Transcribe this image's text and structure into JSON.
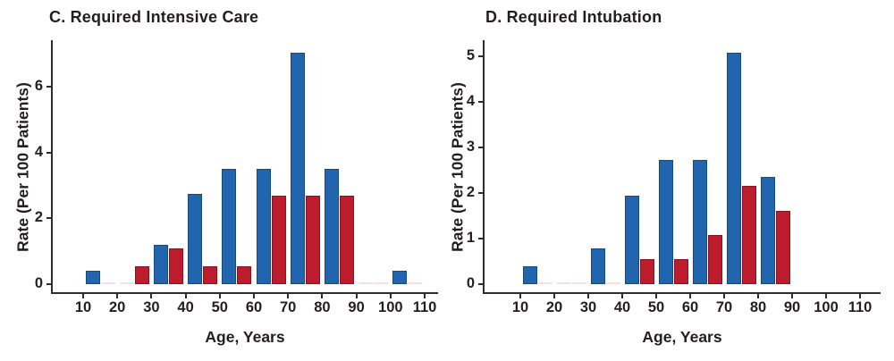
{
  "colors": {
    "blue": "#2065ad",
    "blue_border": "#17497e",
    "blue_near_zero": "#dde9f5",
    "red": "#bd1c2c",
    "red_border": "#8c1220",
    "red_near_zero": "#f8dee1",
    "axis": "#2d2d2d",
    "text": "#231f20"
  },
  "chart_data": [
    {
      "type": "bar",
      "title": "C. Required Intensive Care",
      "xlabel": "Age, Years",
      "ylabel": "Rate (Per 100 Patients)",
      "categories": [
        "10-19",
        "20-29",
        "30-39",
        "40-49",
        "50-59",
        "60-69",
        "70-79",
        "80-89",
        "90-99",
        "100-109"
      ],
      "x_ticks": [
        10,
        20,
        30,
        40,
        50,
        60,
        70,
        80,
        90,
        100,
        110
      ],
      "y_ticks": [
        0,
        2,
        4,
        6
      ],
      "ylim": [
        0,
        7.4
      ],
      "xlim": [
        1,
        114
      ],
      "grid": "off",
      "legend": "none",
      "series": [
        {
          "name": "blue",
          "color": "#2065ad",
          "values": [
            0.4,
            0.02,
            1.2,
            2.75,
            3.5,
            3.5,
            7.05,
            3.5,
            0.02,
            0.4
          ]
        },
        {
          "name": "red",
          "color": "#bd1c2c",
          "values": [
            0.02,
            0.55,
            1.1,
            0.55,
            0.55,
            2.7,
            2.7,
            2.7,
            0.02,
            0.02
          ]
        }
      ]
    },
    {
      "type": "bar",
      "title": "D. Required Intubation",
      "xlabel": "Age, Years",
      "ylabel": "Rate (Per 100 Patients)",
      "categories": [
        "10-19",
        "20-29",
        "30-39",
        "40-49",
        "50-59",
        "60-69",
        "70-79",
        "80-89",
        "90-99",
        "100-109"
      ],
      "x_ticks": [
        10,
        20,
        30,
        40,
        50,
        60,
        70,
        80,
        90,
        100,
        110
      ],
      "y_ticks": [
        0,
        1,
        2,
        3,
        4,
        5
      ],
      "ylim": [
        0,
        5.4
      ],
      "xlim": [
        1,
        114
      ],
      "grid": "off",
      "legend": "none",
      "series": [
        {
          "name": "blue",
          "color": "#2065ad",
          "values": [
            0.4,
            0.02,
            0.78,
            1.95,
            2.73,
            2.73,
            5.08,
            2.35,
            null,
            null
          ]
        },
        {
          "name": "red",
          "color": "#bd1c2c",
          "values": [
            0.02,
            0.02,
            0.02,
            0.55,
            0.55,
            1.07,
            2.15,
            1.6,
            null,
            null
          ]
        }
      ]
    }
  ]
}
